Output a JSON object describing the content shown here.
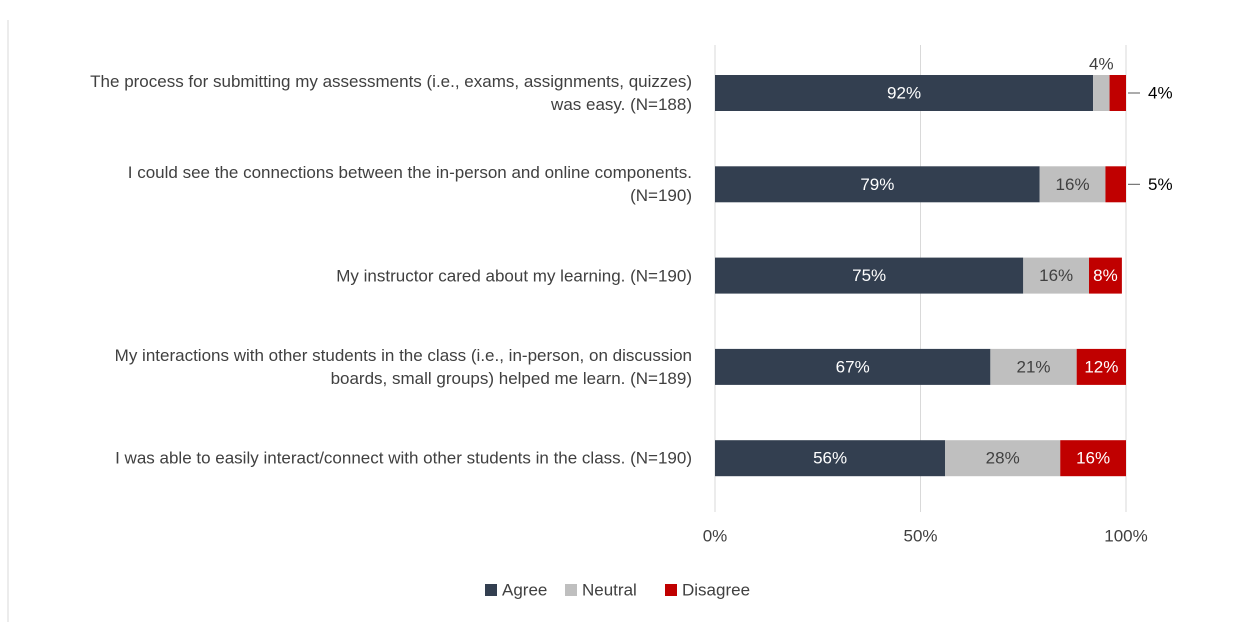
{
  "chart_data": {
    "type": "stacked_bar_horizontal",
    "categories": [
      "The process for submitting my assessments (i.e., exams, assignments, quizzes) was easy. (N=188)",
      "I could see the connections between the in-person and online components. (N=190)",
      "My instructor cared about my learning. (N=190)",
      "My interactions with other students in the class (i.e., in-person, on discussion boards, small groups) helped me learn. (N=189)",
      "I was able to easily interact/connect with other students in the class. (N=190)"
    ],
    "series": [
      {
        "name": "Agree",
        "color": "#333f50",
        "label_color": "#ffffff",
        "values": [
          92,
          79,
          75,
          67,
          56
        ],
        "value_labels": [
          "92%",
          "79%",
          "75%",
          "67%",
          "56%"
        ]
      },
      {
        "name": "Neutral",
        "color": "#bfbfbf",
        "label_color": "#404040",
        "values": [
          4,
          16,
          16,
          21,
          28
        ],
        "value_labels": [
          "4%",
          "16%",
          "16%",
          "21%",
          "28%"
        ]
      },
      {
        "name": "Disagree",
        "color": "#c00000",
        "label_color": "#ffffff",
        "values": [
          4,
          5,
          8,
          12,
          16
        ],
        "value_labels": [
          "4%",
          "5%",
          "8%",
          "12%",
          "16%"
        ]
      }
    ],
    "xlim": [
      0,
      100
    ],
    "xticks": [
      {
        "value": 0,
        "label": "0%"
      },
      {
        "value": 50,
        "label": "50%"
      },
      {
        "value": 100,
        "label": "100%"
      }
    ],
    "grid": true,
    "legend": "bottom"
  }
}
